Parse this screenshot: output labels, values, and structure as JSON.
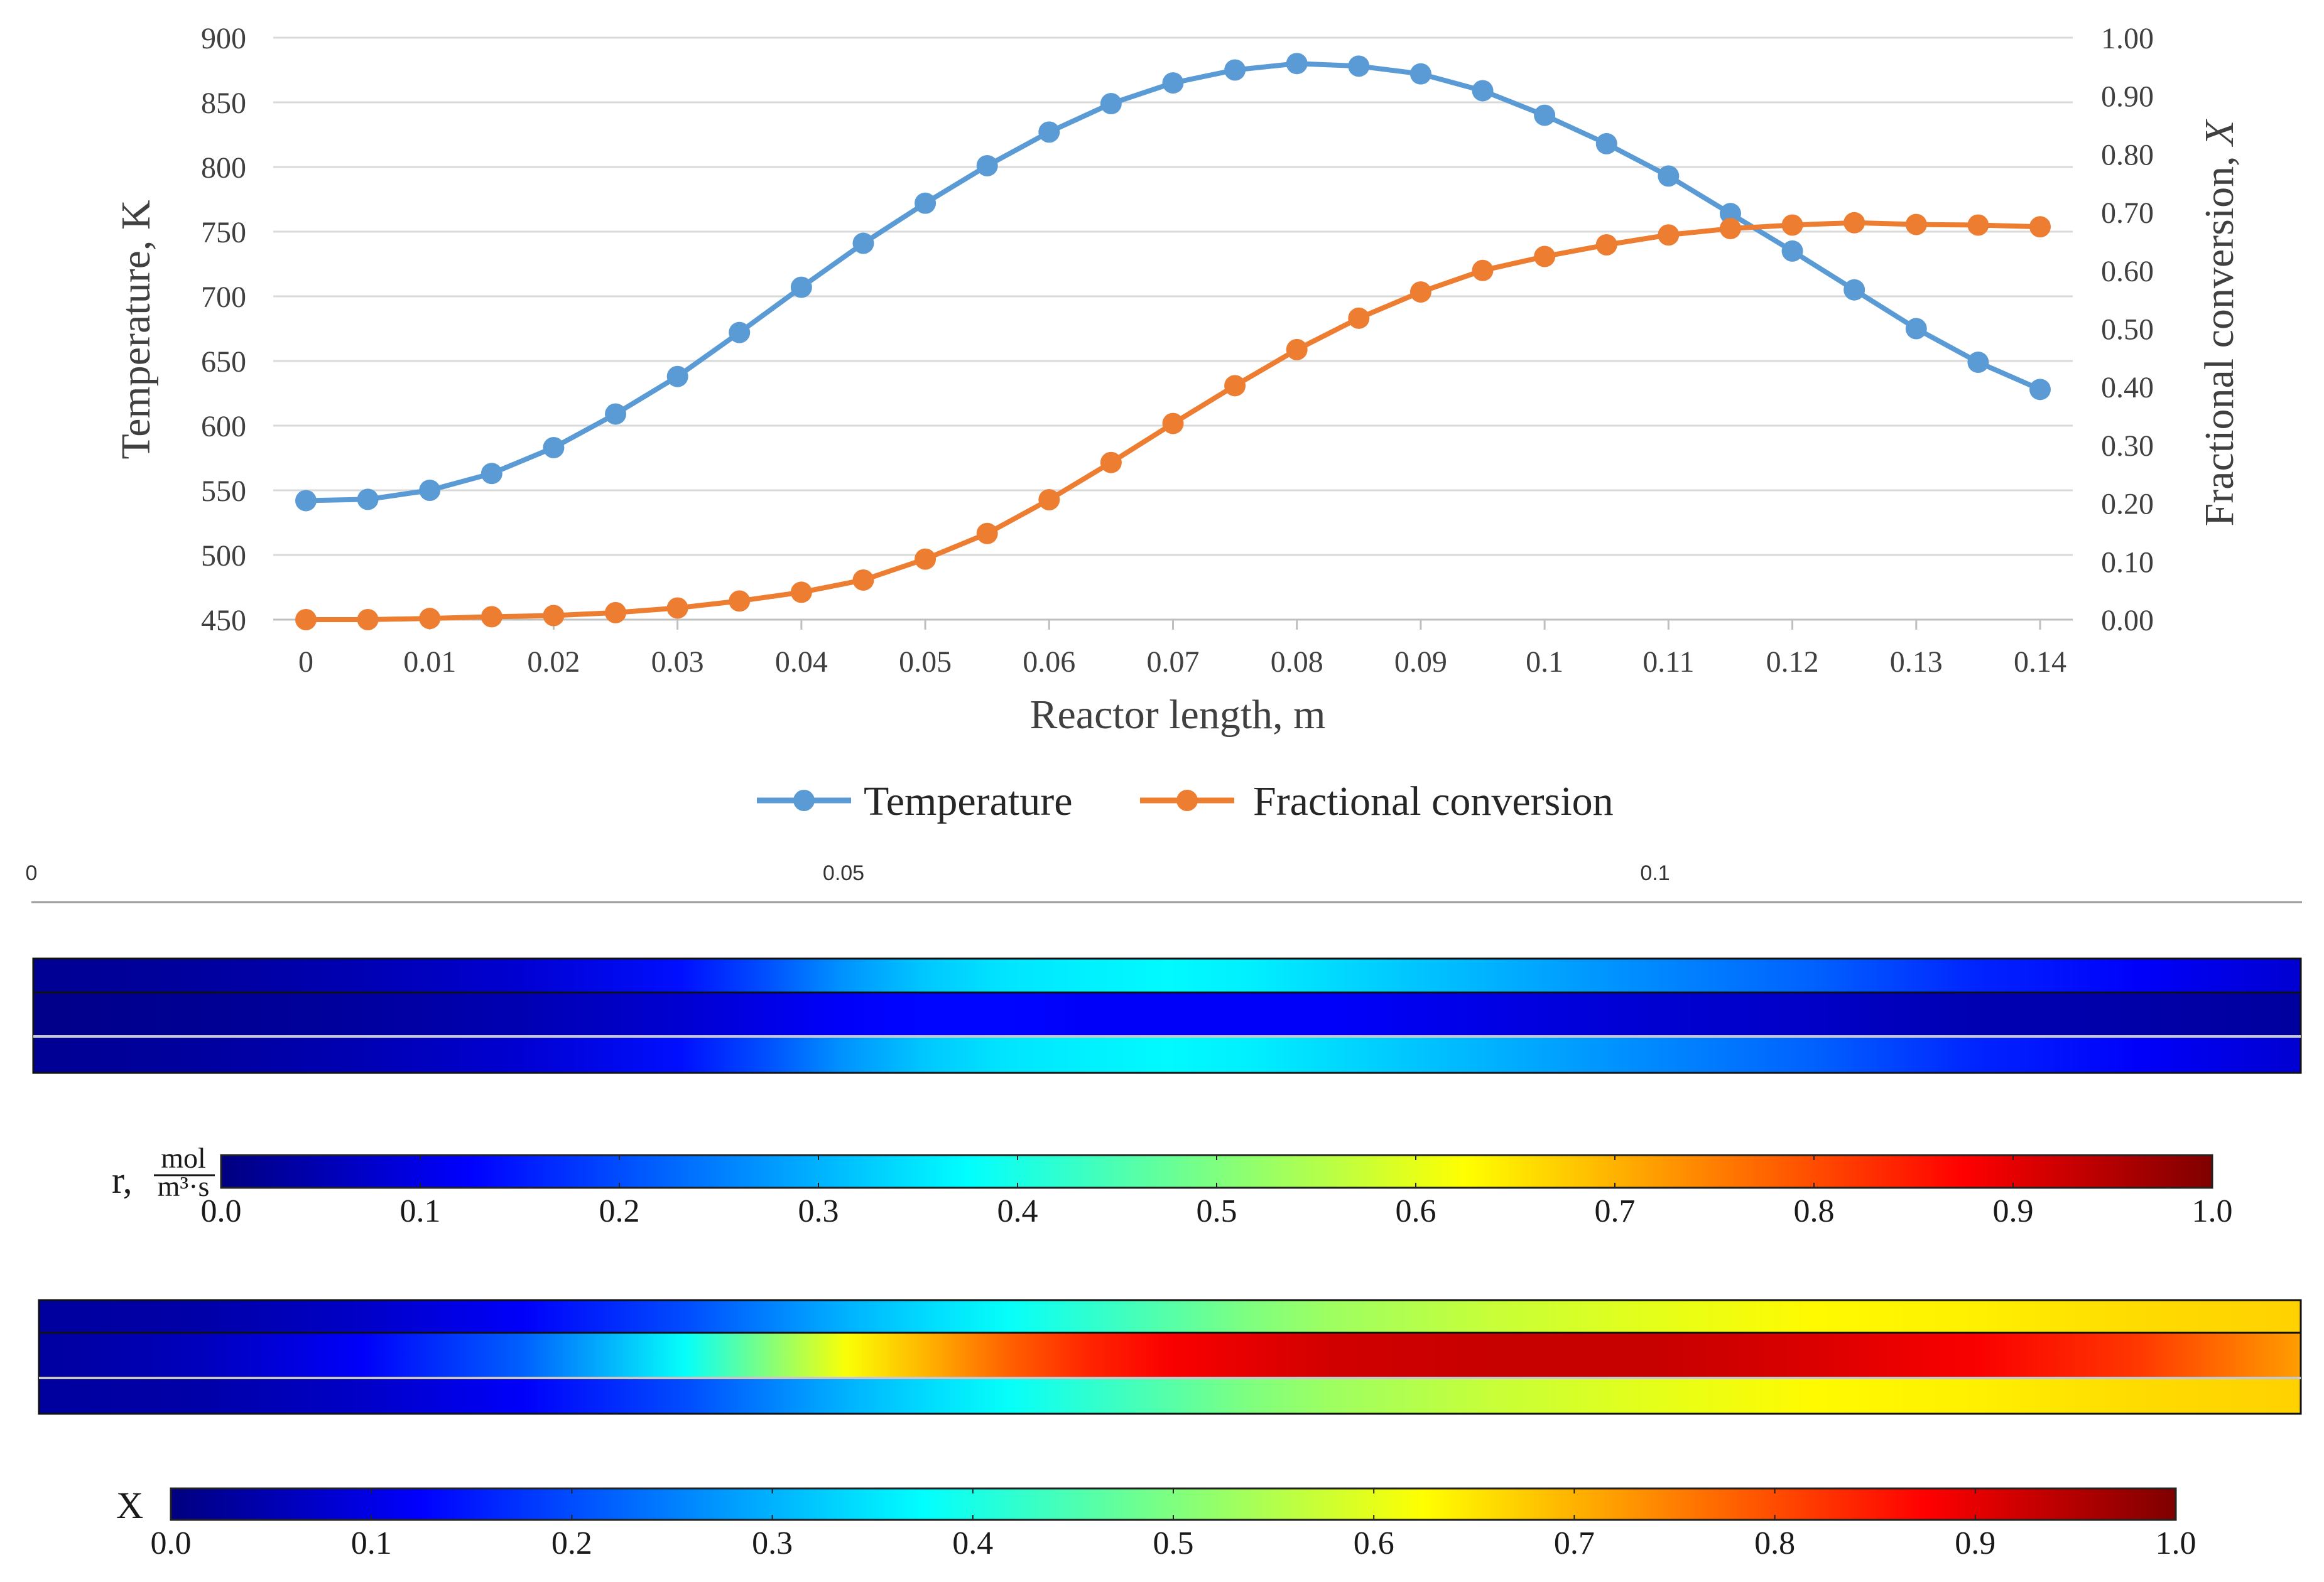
{
  "colors": {
    "temperature": "#5b9bd5",
    "conversion": "#ed7d31",
    "grid": "#d9d9d9",
    "axis": "#bfbfbf",
    "jet": [
      "#00007f",
      "#0000ff",
      "#007fff",
      "#00ffff",
      "#7fff7f",
      "#ffff00",
      "#ff7f00",
      "#ff0000",
      "#7f0000"
    ]
  },
  "chart_data": [
    {
      "type": "line",
      "title": "",
      "xlabel": "Reactor length, m",
      "ylabel": "Temperature, K",
      "y2label_prefix": "Fractional conversion,",
      "y2label_symbol": "X",
      "xlim": [
        0,
        0.14
      ],
      "ylim": [
        450,
        900
      ],
      "y2lim": [
        0,
        1
      ],
      "x_ticks": [
        "0",
        "0.01",
        "0.02",
        "0.03",
        "0.04",
        "0.05",
        "0.06",
        "0.07",
        "0.08",
        "0.09",
        "0.1",
        "0.11",
        "0.12",
        "0.13",
        "0.14"
      ],
      "y_ticks": [
        "450",
        "500",
        "550",
        "600",
        "650",
        "700",
        "750",
        "800",
        "850",
        "900"
      ],
      "y2_ticks": [
        "0.00",
        "0.10",
        "0.20",
        "0.30",
        "0.40",
        "0.50",
        "0.60",
        "0.70",
        "0.80",
        "0.90",
        "1.00"
      ],
      "legend_position": "bottom",
      "x": [
        0,
        0.005,
        0.01,
        0.015,
        0.02,
        0.025,
        0.03,
        0.035,
        0.04,
        0.045,
        0.05,
        0.055,
        0.06,
        0.065,
        0.07,
        0.075,
        0.08,
        0.085,
        0.09,
        0.095,
        0.1,
        0.105,
        0.11,
        0.115,
        0.12,
        0.125,
        0.13,
        0.135,
        0.14
      ],
      "series": [
        {
          "name": "Temperature",
          "axis": "left",
          "values": [
            542,
            543,
            550,
            563,
            583,
            609,
            638,
            672,
            707,
            741,
            772,
            801,
            827,
            849,
            865,
            875,
            880,
            878,
            872,
            859,
            840,
            818,
            793,
            764,
            735,
            705,
            675,
            649,
            628
          ]
        },
        {
          "name": "Fractional conversion",
          "axis": "right",
          "values": [
            0.0,
            0.0,
            0.002,
            0.005,
            0.007,
            0.012,
            0.02,
            0.032,
            0.047,
            0.068,
            0.104,
            0.148,
            0.206,
            0.27,
            0.337,
            0.402,
            0.464,
            0.518,
            0.563,
            0.6,
            0.624,
            0.644,
            0.661,
            0.672,
            0.678,
            0.682,
            0.679,
            0.678,
            0.675
          ]
        }
      ]
    },
    {
      "type": "heatmap",
      "name": "reaction-rate-contour",
      "position_ticks": [
        "0",
        "0.05",
        "0.1"
      ],
      "colorbar_label": "r,",
      "colorbar_unit_num": "mol",
      "colorbar_unit_den": "m³·s",
      "colorbar_ticks": [
        "0.0",
        "0.1",
        "0.2",
        "0.3",
        "0.4",
        "0.5",
        "0.6",
        "0.7",
        "0.8",
        "0.9",
        "1.0"
      ],
      "colorbar_range": [
        0,
        1
      ],
      "x": [
        0,
        0.01,
        0.02,
        0.03,
        0.04,
        0.045,
        0.05,
        0.055,
        0.06,
        0.065,
        0.07,
        0.075,
        0.08,
        0.09,
        0.1,
        0.11,
        0.12,
        0.13,
        0.14
      ],
      "rows": [
        {
          "name": "outer-top",
          "values": [
            0.02,
            0.03,
            0.05,
            0.08,
            0.14,
            0.2,
            0.27,
            0.32,
            0.35,
            0.36,
            0.37,
            0.36,
            0.34,
            0.3,
            0.26,
            0.22,
            0.16,
            0.12,
            0.08
          ]
        },
        {
          "name": "inner",
          "values": [
            0.01,
            0.02,
            0.03,
            0.05,
            0.08,
            0.1,
            0.12,
            0.13,
            0.13,
            0.12,
            0.12,
            0.12,
            0.12,
            0.1,
            0.08,
            0.07,
            0.05,
            0.04,
            0.03
          ]
        },
        {
          "name": "outer-bottom",
          "values": [
            0.02,
            0.03,
            0.05,
            0.08,
            0.14,
            0.2,
            0.27,
            0.32,
            0.35,
            0.36,
            0.37,
            0.36,
            0.34,
            0.3,
            0.26,
            0.22,
            0.16,
            0.12,
            0.08
          ]
        }
      ]
    },
    {
      "type": "heatmap",
      "name": "conversion-contour",
      "colorbar_label": "X",
      "colorbar_ticks": [
        "0.0",
        "0.1",
        "0.2",
        "0.3",
        "0.4",
        "0.5",
        "0.6",
        "0.7",
        "0.8",
        "0.9",
        "1.0"
      ],
      "colorbar_range": [
        0,
        1
      ],
      "x": [
        0,
        0.01,
        0.02,
        0.03,
        0.04,
        0.045,
        0.05,
        0.055,
        0.06,
        0.065,
        0.07,
        0.075,
        0.08,
        0.09,
        0.1,
        0.11,
        0.12,
        0.13,
        0.14
      ],
      "rows": [
        {
          "name": "outer-top",
          "values": [
            0.03,
            0.04,
            0.07,
            0.12,
            0.2,
            0.25,
            0.3,
            0.34,
            0.38,
            0.42,
            0.46,
            0.5,
            0.53,
            0.57,
            0.6,
            0.63,
            0.64,
            0.66,
            0.67
          ]
        },
        {
          "name": "inner",
          "values": [
            0.03,
            0.06,
            0.12,
            0.22,
            0.38,
            0.5,
            0.62,
            0.7,
            0.78,
            0.84,
            0.88,
            0.9,
            0.92,
            0.93,
            0.93,
            0.91,
            0.88,
            0.82,
            0.72
          ]
        },
        {
          "name": "outer-bottom",
          "values": [
            0.03,
            0.04,
            0.07,
            0.12,
            0.2,
            0.25,
            0.3,
            0.34,
            0.38,
            0.42,
            0.46,
            0.5,
            0.53,
            0.57,
            0.6,
            0.63,
            0.64,
            0.66,
            0.67
          ]
        }
      ]
    }
  ]
}
